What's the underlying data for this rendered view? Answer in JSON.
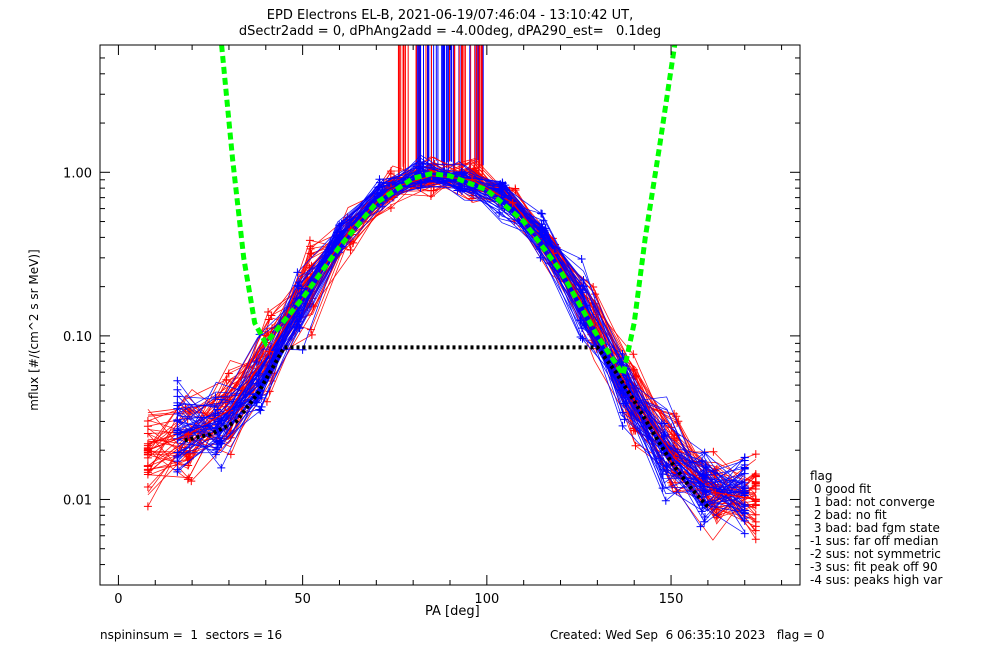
{
  "title_line1": "EPD Electrons EL-B, 2021-06-19/07:46:04 - 13:10:42 UT,",
  "title_line2": "dSectr2add = 0, dPhAng2add = -4.00deg, dPA290_est=   0.1deg",
  "footer_left": "nspininsum =  1  sectors = 16",
  "footer_right": "Created: Wed Sep  6 06:35:10 2023   flag = 0",
  "legend": {
    "title": "flag",
    "items": [
      " 0 good fit",
      " 1 bad: not converge",
      " 2 bad: no fit",
      " 3 bad: bad fgm state",
      "-1 sus: far off median",
      "-2 sus: not symmetric",
      "-3 sus: fit peak off 90",
      "-4 sus: peaks high var"
    ]
  },
  "colors": {
    "red": "#ff0000",
    "blue": "#0000ff",
    "green": "#00ff00",
    "black": "#000000"
  },
  "chart_data": {
    "type": "line",
    "title": "EPD Electrons EL-B, 2021-06-19/07:46:04 - 13:10:42 UT,",
    "subtitle": "dSectr2add = 0, dPhAng2add = -4.00deg, dPA290_est=   0.1deg",
    "xlabel": "PA [deg]",
    "ylabel": "mflux [#/(cm^2 s sr MeV)]",
    "xlim": [
      -5,
      185
    ],
    "ylim": [
      0.003,
      6.0
    ],
    "yscale": "log",
    "xticks": [
      0,
      50,
      100,
      150
    ],
    "xtick_labels": [
      "0",
      "50",
      "100",
      "150"
    ],
    "yticks": [
      0.01,
      0.1,
      1.0
    ],
    "ytick_labels": [
      "0.01",
      "0.10",
      "1.00"
    ],
    "grid": false,
    "legend_position": "bottom-right outside",
    "series": [
      {
        "color": "red",
        "style": "line-plus",
        "x": [
          8,
          19,
          30,
          41,
          52,
          63,
          74,
          85,
          96,
          107,
          118,
          129,
          140,
          151,
          162,
          173
        ],
        "y": [
          0.02,
          0.025,
          0.035,
          0.08,
          0.2,
          0.45,
          0.8,
          0.95,
          0.9,
          0.65,
          0.32,
          0.12,
          0.04,
          0.018,
          0.011,
          0.01
        ]
      },
      {
        "color": "blue",
        "style": "line-plus",
        "x": [
          16,
          27,
          38,
          49,
          60,
          71,
          82,
          93,
          104,
          115,
          126,
          137,
          148,
          159,
          170
        ],
        "y": [
          0.025,
          0.03,
          0.05,
          0.15,
          0.4,
          0.75,
          0.95,
          0.9,
          0.7,
          0.4,
          0.15,
          0.05,
          0.02,
          0.012,
          0.011
        ]
      },
      {
        "color": "green",
        "style": "dashed",
        "x": [
          28,
          31,
          34,
          37,
          40,
          50,
          60,
          70,
          80,
          85,
          90,
          100,
          110,
          120,
          130,
          137,
          140,
          143,
          147,
          151
        ],
        "y": [
          6.0,
          1.2,
          0.3,
          0.12,
          0.09,
          0.17,
          0.35,
          0.65,
          0.92,
          0.98,
          0.95,
          0.78,
          0.5,
          0.25,
          0.1,
          0.058,
          0.12,
          0.4,
          1.5,
          6.0
        ]
      },
      {
        "color": "black",
        "style": "dotted",
        "x": [
          18,
          25,
          32,
          38,
          45,
          130,
          135,
          140,
          145,
          150,
          155,
          160
        ],
        "y": [
          0.023,
          0.025,
          0.03,
          0.045,
          0.085,
          0.085,
          0.06,
          0.04,
          0.026,
          0.017,
          0.012,
          0.009
        ]
      }
    ]
  }
}
